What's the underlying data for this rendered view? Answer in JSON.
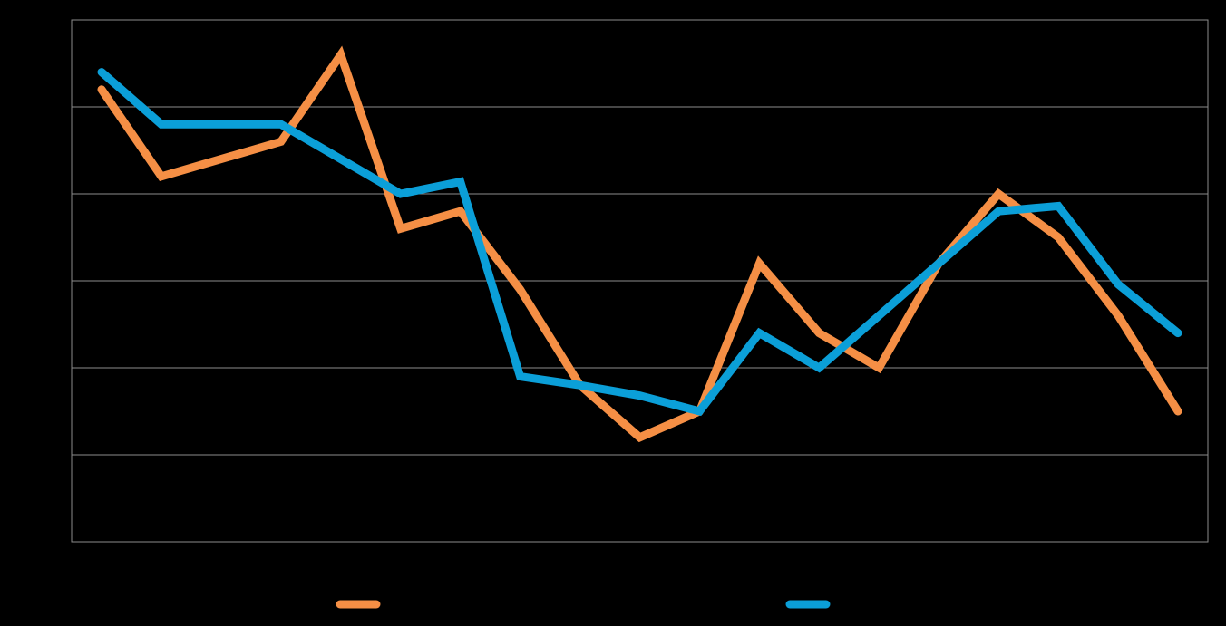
{
  "chart_data": {
    "type": "line",
    "title": "",
    "xlabel": "",
    "ylabel": "",
    "x": [
      1,
      2,
      3,
      4,
      5,
      6,
      7,
      8,
      9,
      10,
      11,
      12,
      13,
      14,
      15,
      16,
      17,
      18,
      19
    ],
    "xlim": [
      0.5,
      19.5
    ],
    "ylim": [
      0,
      6
    ],
    "yticks": [
      0,
      1,
      2,
      3,
      4,
      5,
      6
    ],
    "grid": true,
    "legend_position": "bottom",
    "series": [
      {
        "name": "",
        "color": "#F58F45",
        "values": [
          5.2,
          4.2,
          4.4,
          4.6,
          5.6,
          3.6,
          3.8,
          2.9,
          1.8,
          1.2,
          1.5,
          3.2,
          2.4,
          2.0,
          3.2,
          4.0,
          3.5,
          2.6,
          1.5
        ]
      },
      {
        "name": "",
        "color": "#0B9FD8",
        "values": [
          5.4,
          4.8,
          4.8,
          4.8,
          4.4,
          4.0,
          4.14,
          1.9,
          1.8,
          1.68,
          1.5,
          2.4,
          2.0,
          2.6,
          3.2,
          3.8,
          3.86,
          2.96,
          2.4
        ]
      }
    ]
  }
}
